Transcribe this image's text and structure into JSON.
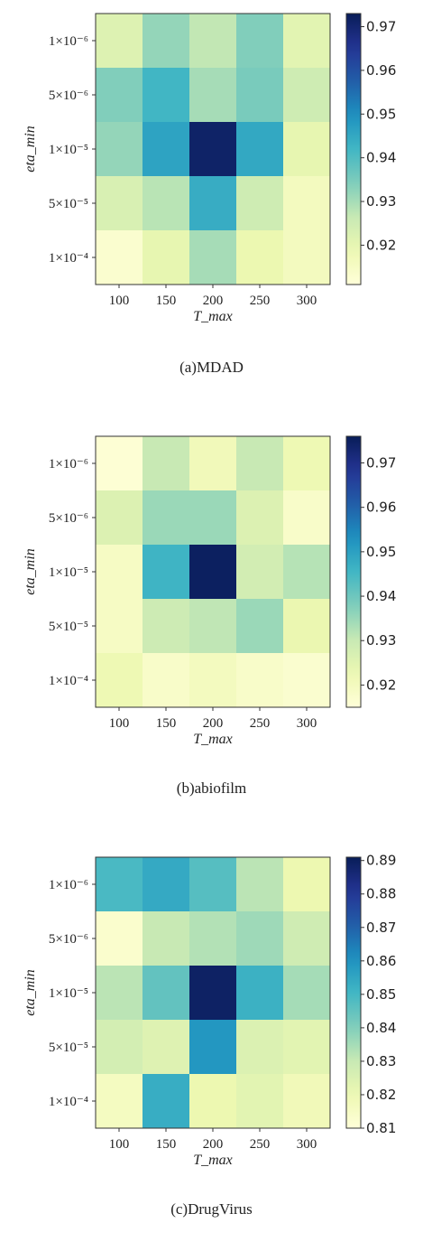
{
  "chart_data": [
    {
      "type": "heatmap",
      "caption": "(a)MDAD",
      "xlabel": "T_max",
      "ylabel": "eta_min",
      "x_categories": [
        "100",
        "150",
        "200",
        "250",
        "300"
      ],
      "y_categories": [
        "1×10⁻⁶",
        "5×10⁻⁶",
        "1×10⁻⁵",
        "5×10⁻⁵",
        "1×10⁻⁴"
      ],
      "values": [
        [
          0.922,
          0.932,
          0.927,
          0.934,
          0.921
        ],
        [
          0.934,
          0.942,
          0.93,
          0.935,
          0.925
        ],
        [
          0.932,
          0.946,
          0.971,
          0.945,
          0.92
        ],
        [
          0.923,
          0.928,
          0.944,
          0.925,
          0.916
        ],
        [
          0.913,
          0.92,
          0.93,
          0.919,
          0.916
        ]
      ],
      "colorbar": {
        "min": 0.911,
        "max": 0.973,
        "ticks": [
          "0.92",
          "0.93",
          "0.94",
          "0.95",
          "0.96",
          "0.97"
        ]
      }
    },
    {
      "type": "heatmap",
      "caption": "(b)abiofilm",
      "xlabel": "T_max",
      "ylabel": "eta_min",
      "x_categories": [
        "100",
        "150",
        "200",
        "250",
        "300"
      ],
      "y_categories": [
        "1×10⁻⁶",
        "5×10⁻⁶",
        "1×10⁻⁵",
        "5×10⁻⁵",
        "1×10⁻⁴"
      ],
      "values": [
        [
          0.916,
          0.93,
          0.921,
          0.93,
          0.922
        ],
        [
          0.926,
          0.935,
          0.935,
          0.926,
          0.918
        ],
        [
          0.919,
          0.946,
          0.975,
          0.928,
          0.932
        ],
        [
          0.919,
          0.929,
          0.931,
          0.935,
          0.923
        ],
        [
          0.922,
          0.918,
          0.92,
          0.918,
          0.917
        ]
      ],
      "colorbar": {
        "min": 0.915,
        "max": 0.976,
        "ticks": [
          "0.92",
          "0.93",
          "0.94",
          "0.95",
          "0.96",
          "0.97"
        ]
      }
    },
    {
      "type": "heatmap",
      "caption": "(c)DrugVirus",
      "xlabel": "T_max",
      "ylabel": "eta_min",
      "x_categories": [
        "100",
        "150",
        "200",
        "250",
        "300"
      ],
      "y_categories": [
        "1×10⁻⁶",
        "5×10⁻⁶",
        "1×10⁻⁵",
        "5×10⁻⁵",
        "1×10⁻⁴"
      ],
      "values": [
        [
          0.849,
          0.854,
          0.847,
          0.832,
          0.82
        ],
        [
          0.813,
          0.83,
          0.833,
          0.836,
          0.828
        ],
        [
          0.832,
          0.845,
          0.889,
          0.852,
          0.835
        ],
        [
          0.827,
          0.824,
          0.859,
          0.825,
          0.823
        ],
        [
          0.816,
          0.853,
          0.82,
          0.823,
          0.818
        ]
      ],
      "colorbar": {
        "min": 0.81,
        "max": 0.891,
        "ticks": [
          "0.81",
          "0.82",
          "0.83",
          "0.84",
          "0.85",
          "0.86",
          "0.87",
          "0.88",
          "0.89"
        ]
      }
    }
  ]
}
